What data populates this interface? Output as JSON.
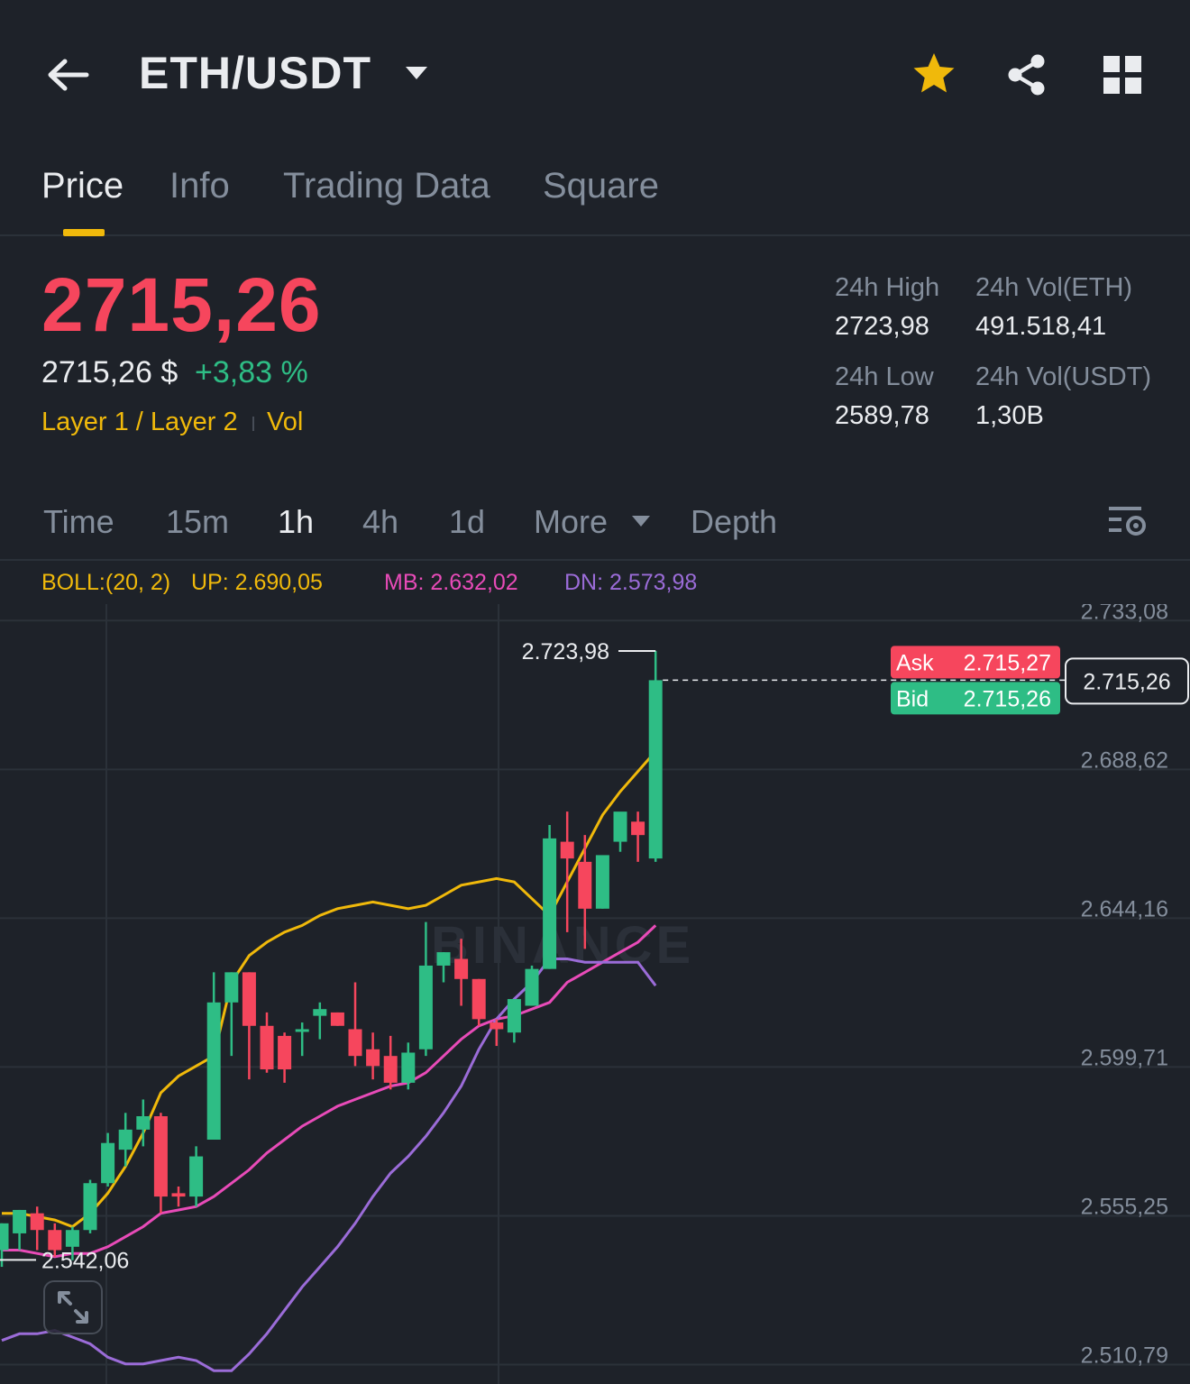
{
  "header": {
    "pair": "ETH/USDT",
    "back_icon": "back-arrow-icon",
    "icons": [
      "star-icon",
      "share-icon",
      "grid-icon"
    ],
    "star_color": "#f0b90b"
  },
  "tabs": [
    {
      "label": "Price",
      "active": true
    },
    {
      "label": "Info",
      "active": false
    },
    {
      "label": "Trading Data",
      "active": false
    },
    {
      "label": "Square",
      "active": false
    }
  ],
  "ticker": {
    "last_price": "2715,26",
    "usd_price": "2715,26 $",
    "change_pct": "+3,83 %",
    "tag_primary": "Layer 1 / Layer 2",
    "tag_secondary": "Vol",
    "high_label": "24h High",
    "high_value": "2723,98",
    "low_label": "24h Low",
    "low_value": "2589,78",
    "vol_eth_label": "24h Vol(ETH)",
    "vol_eth_value": "491.518,41",
    "vol_usdt_label": "24h Vol(USDT)",
    "vol_usdt_value": "1,30B"
  },
  "intervals": [
    {
      "label": "Time",
      "active": false
    },
    {
      "label": "15m",
      "active": false
    },
    {
      "label": "1h",
      "active": true
    },
    {
      "label": "4h",
      "active": false
    },
    {
      "label": "1d",
      "active": false
    },
    {
      "label": "More",
      "active": false
    },
    {
      "label": "Depth",
      "active": false
    }
  ],
  "indicator": {
    "name": "BOLL:(20, 2)",
    "up": "UP: 2.690,05",
    "mb": "MB: 2.632,02",
    "dn": "DN: 2.573,98",
    "colors": {
      "up": "#f0b90b",
      "mb": "#e84bb8",
      "dn": "#9b6cd8",
      "name": "#f0b90b"
    }
  },
  "orderbook": {
    "ask_label": "Ask",
    "ask_value": "2.715,27",
    "bid_label": "Bid",
    "bid_value": "2.715,26",
    "last_marker": "2.715,26"
  },
  "colors": {
    "up": "#2ebd85",
    "down": "#f6465d",
    "accent": "#f0b90b",
    "bg": "#1e2229"
  },
  "watermark": "BINANCE",
  "chart_data": {
    "type": "candlestick",
    "ylim": [
      2505.0,
      2738.0
    ],
    "y_ticks": [
      "2.733,08",
      "2.688,62",
      "2.644,16",
      "2.599,71",
      "2.555,25",
      "2.510,79"
    ],
    "y_tick_values": [
      2733.08,
      2688.62,
      2644.16,
      2599.71,
      2555.25,
      2510.79
    ],
    "high_label": "2.723,98",
    "low_label": "2.542,06",
    "high_value": 2723.98,
    "low_value": 2542.06,
    "last_price": 2715.26,
    "candles": [
      {
        "o": 2545,
        "h": 2553,
        "c": 2553,
        "l": 2540
      },
      {
        "o": 2550,
        "h": 2557,
        "c": 2557,
        "l": 2545
      },
      {
        "o": 2556,
        "h": 2558,
        "c": 2551,
        "l": 2545
      },
      {
        "o": 2551,
        "h": 2553,
        "c": 2545,
        "l": 2543
      },
      {
        "o": 2546,
        "h": 2552,
        "c": 2551,
        "l": 2542
      },
      {
        "o": 2551,
        "h": 2566,
        "c": 2565,
        "l": 2550
      },
      {
        "o": 2565,
        "h": 2580,
        "c": 2577,
        "l": 2564
      },
      {
        "o": 2575,
        "h": 2586,
        "c": 2581,
        "l": 2570
      },
      {
        "o": 2581,
        "h": 2590,
        "c": 2585,
        "l": 2576
      },
      {
        "o": 2585,
        "h": 2586,
        "c": 2561,
        "l": 2556
      },
      {
        "o": 2562,
        "h": 2564,
        "c": 2561,
        "l": 2558
      },
      {
        "o": 2561,
        "h": 2576,
        "c": 2573,
        "l": 2558
      },
      {
        "o": 2578,
        "h": 2628,
        "c": 2619,
        "l": 2578
      },
      {
        "o": 2619,
        "h": 2628,
        "c": 2628,
        "l": 2603
      },
      {
        "o": 2628,
        "h": 2628,
        "c": 2612,
        "l": 2596
      },
      {
        "o": 2612,
        "h": 2616,
        "c": 2599,
        "l": 2598
      },
      {
        "o": 2609,
        "h": 2610,
        "c": 2599,
        "l": 2595
      },
      {
        "o": 2611,
        "h": 2613,
        "c": 2611,
        "l": 2603
      },
      {
        "o": 2615,
        "h": 2619,
        "c": 2617,
        "l": 2608
      },
      {
        "o": 2616,
        "h": 2616,
        "c": 2612,
        "l": 2612
      },
      {
        "o": 2611,
        "h": 2625,
        "c": 2603,
        "l": 2600
      },
      {
        "o": 2605,
        "h": 2610,
        "c": 2600,
        "l": 2596
      },
      {
        "o": 2603,
        "h": 2609,
        "c": 2595,
        "l": 2593
      },
      {
        "o": 2595,
        "h": 2607,
        "c": 2604,
        "l": 2593
      },
      {
        "o": 2605,
        "h": 2643,
        "c": 2630,
        "l": 2603
      },
      {
        "o": 2630,
        "h": 2634,
        "c": 2634,
        "l": 2625
      },
      {
        "o": 2632,
        "h": 2638,
        "c": 2626,
        "l": 2618
      },
      {
        "o": 2626,
        "h": 2626,
        "c": 2614,
        "l": 2612
      },
      {
        "o": 2613,
        "h": 2614,
        "c": 2611,
        "l": 2606
      },
      {
        "o": 2610,
        "h": 2620,
        "c": 2620,
        "l": 2607
      },
      {
        "o": 2618,
        "h": 2630,
        "c": 2629,
        "l": 2618
      },
      {
        "o": 2629,
        "h": 2672,
        "c": 2668,
        "l": 2629
      },
      {
        "o": 2667,
        "h": 2676,
        "c": 2662,
        "l": 2640
      },
      {
        "o": 2661,
        "h": 2669,
        "c": 2647,
        "l": 2635
      },
      {
        "o": 2647,
        "h": 2662,
        "c": 2663,
        "l": 2647
      },
      {
        "o": 2667,
        "h": 2675,
        "c": 2676,
        "l": 2664
      },
      {
        "o": 2673,
        "h": 2676,
        "c": 2669,
        "l": 2661
      },
      {
        "o": 2662,
        "h": 2723.98,
        "c": 2715.26,
        "l": 2661
      }
    ],
    "boll_up": [
      2556,
      2556,
      2555,
      2554,
      2552,
      2556,
      2562,
      2570,
      2580,
      2592,
      2597,
      2600,
      2603,
      2625,
      2633,
      2637,
      2640,
      2642,
      2645,
      2647,
      2648,
      2649,
      2648,
      2647,
      2648,
      2651,
      2654,
      2655,
      2656,
      2655,
      2650,
      2645,
      2655,
      2665,
      2675,
      2682,
      2688,
      2694
    ],
    "boll_mid": [
      2545,
      2545,
      2544,
      2543,
      2544,
      2544,
      2546,
      2549,
      2552,
      2556,
      2557,
      2558,
      2561,
      2565,
      2569,
      2574,
      2578,
      2582,
      2585,
      2588,
      2590,
      2592,
      2594,
      2595,
      2598,
      2603,
      2608,
      2612,
      2614,
      2615,
      2617,
      2619,
      2625,
      2628,
      2631,
      2634,
      2637,
      2642
    ],
    "boll_dn": [
      2518,
      2520,
      2520,
      2521,
      2519,
      2517,
      2513,
      2511,
      2511,
      2512,
      2513,
      2512,
      2509,
      2509,
      2514,
      2520,
      2527,
      2534,
      2540,
      2546,
      2553,
      2561,
      2568,
      2573,
      2579,
      2586,
      2594,
      2605,
      2614,
      2620,
      2625,
      2632,
      2632,
      2631,
      2631,
      2631,
      2631,
      2624
    ]
  }
}
